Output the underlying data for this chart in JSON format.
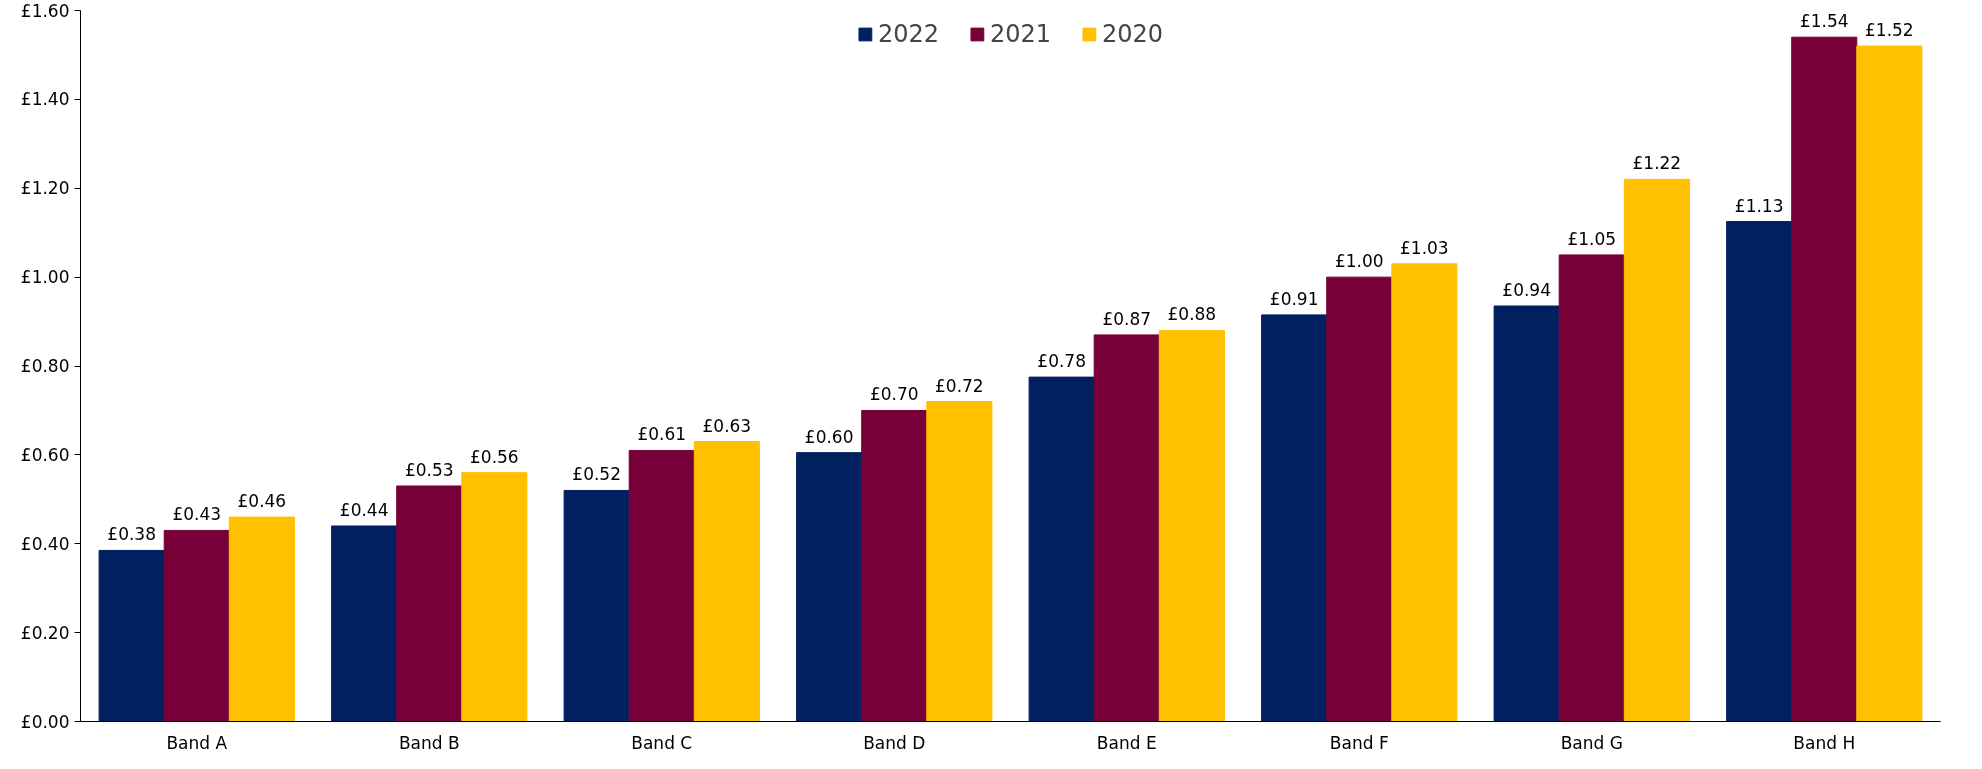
{
  "chart_data": {
    "type": "bar",
    "categories": [
      "Band A",
      "Band B",
      "Band C",
      "Band D",
      "Band E",
      "Band F",
      "Band G",
      "Band H"
    ],
    "series": [
      {
        "name": "2022",
        "color": "#002060",
        "values": [
          0.385,
          0.44,
          0.52,
          0.605,
          0.775,
          0.915,
          0.935,
          1.125
        ],
        "value_labels": [
          "£0.38",
          "£0.44",
          "£0.52",
          "£0.60",
          "£0.78",
          "£0.91",
          "£0.94",
          "£1.13"
        ]
      },
      {
        "name": "2021",
        "color": "#780038",
        "values": [
          0.43,
          0.53,
          0.61,
          0.7,
          0.87,
          1.0,
          1.05,
          1.54
        ],
        "value_labels": [
          "£0.43",
          "£0.53",
          "£0.61",
          "£0.70",
          "£0.87",
          "£1.00",
          "£1.05",
          "£1.54"
        ]
      },
      {
        "name": "2020",
        "color": "#ffc000",
        "values": [
          0.46,
          0.56,
          0.63,
          0.72,
          0.88,
          1.03,
          1.22,
          1.52
        ],
        "value_labels": [
          "£0.46",
          "£0.56",
          "£0.63",
          "£0.72",
          "£0.88",
          "£1.03",
          "£1.22",
          "£1.52"
        ]
      }
    ],
    "ylim": [
      0,
      1.6
    ],
    "yticks": [
      {
        "value": 0,
        "label": "£0.00"
      },
      {
        "value": 0.2,
        "label": "£0.20"
      },
      {
        "value": 0.4,
        "label": "£0.40"
      },
      {
        "value": 0.6,
        "label": "£0.60"
      },
      {
        "value": 0.8,
        "label": "£0.80"
      },
      {
        "value": 1.0,
        "label": "£1.00"
      },
      {
        "value": 1.2,
        "label": "£1.20"
      },
      {
        "value": 1.4,
        "label": "£1.40"
      },
      {
        "value": 1.6,
        "label": "£1.60"
      }
    ],
    "grid": false,
    "legend": "top"
  }
}
